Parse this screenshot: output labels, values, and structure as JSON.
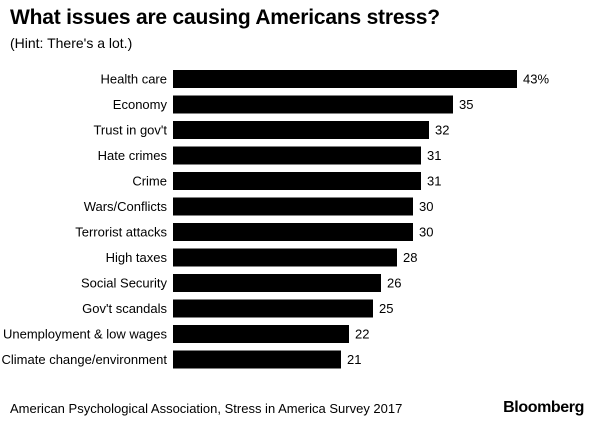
{
  "title": "What issues are causing Americans stress?",
  "subtitle": "(Hint: There's a lot.)",
  "source": "American Psychological Association, Stress in America Survey 2017",
  "brand": "Bloomberg",
  "colors": {
    "bar": "#000000",
    "text": "#000000",
    "background": "#ffffff"
  },
  "chart_data": {
    "type": "bar",
    "orientation": "horizontal",
    "title": "What issues are causing Americans stress?",
    "subtitle": "(Hint: There's a lot.)",
    "xlabel": "",
    "ylabel": "",
    "unit": "%",
    "xlim": [
      0,
      43
    ],
    "grid": false,
    "categories": [
      "Health care",
      "Economy",
      "Trust in gov't",
      "Hate crimes",
      "Crime",
      "Wars/Conflicts",
      "Terrorist attacks",
      "High taxes",
      "Social Security",
      "Gov't scandals",
      "Unemployment & low wages",
      "Climate change/environment"
    ],
    "values": [
      43,
      35,
      32,
      31,
      31,
      30,
      30,
      28,
      26,
      25,
      22,
      21
    ],
    "value_labels": [
      "43%",
      "35",
      "32",
      "31",
      "31",
      "30",
      "30",
      "28",
      "26",
      "25",
      "22",
      "21"
    ]
  }
}
